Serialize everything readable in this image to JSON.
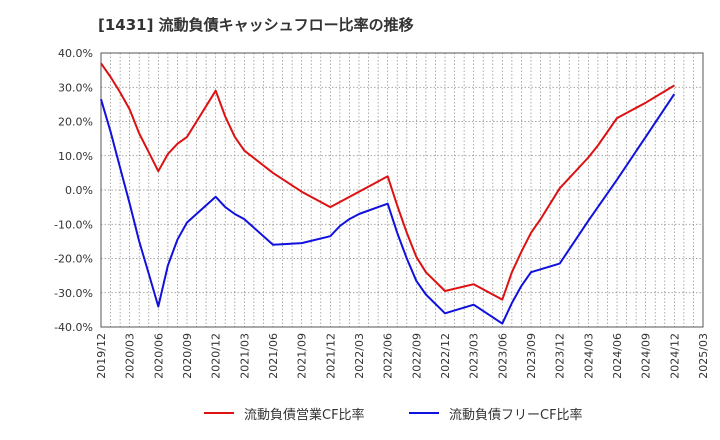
{
  "chart_data": {
    "type": "line",
    "title": "[1431]  流動負債キャッシュフロー比率の推移",
    "y_axis": {
      "min": -40,
      "max": 40,
      "step": 10,
      "suffix": "%",
      "decimals": 1,
      "tick_labels": [
        "40.0%",
        "30.0%",
        "20.0%",
        "10.0%",
        "0.0%",
        "-10.0%",
        "-20.0%",
        "-30.0%",
        "-40.0%"
      ]
    },
    "x_tick_labels": [
      "2019/12",
      "2020/03",
      "2020/06",
      "2020/09",
      "2020/12",
      "2021/03",
      "2021/06",
      "2021/09",
      "2021/12",
      "2022/03",
      "2022/06",
      "2022/09",
      "2022/12",
      "2023/03",
      "2023/06",
      "2023/09",
      "2023/12",
      "2024/03",
      "2024/06",
      "2024/09",
      "2024/12",
      "2025/03"
    ],
    "grid": true,
    "legend_position": "bottom",
    "series": [
      {
        "name": "流動負債営業CF比率",
        "color": "#dd1111",
        "points": [
          [
            "2019/12",
            37.0
          ],
          [
            "2020/01",
            33.0
          ],
          [
            "2020/02",
            28.5
          ],
          [
            "2020/03",
            23.5
          ],
          [
            "2020/04",
            16.5
          ],
          [
            "2020/05",
            11.0
          ],
          [
            "2020/06",
            5.5
          ],
          [
            "2020/07",
            10.5
          ],
          [
            "2020/08",
            13.5
          ],
          [
            "2020/09",
            15.5
          ],
          [
            "2020/12",
            29.0
          ],
          [
            "2021/01",
            21.5
          ],
          [
            "2021/02",
            15.5
          ],
          [
            "2021/03",
            11.5
          ],
          [
            "2021/06",
            5.0
          ],
          [
            "2021/09",
            -0.5
          ],
          [
            "2021/12",
            -5.0
          ],
          [
            "2022/03",
            -0.5
          ],
          [
            "2022/06",
            4.0
          ],
          [
            "2022/07",
            -4.5
          ],
          [
            "2022/08",
            -12.5
          ],
          [
            "2022/09",
            -19.5
          ],
          [
            "2022/10",
            -24.0
          ],
          [
            "2022/12",
            -29.5
          ],
          [
            "2023/03",
            -27.5
          ],
          [
            "2023/06",
            -32.0
          ],
          [
            "2023/07",
            -24.0
          ],
          [
            "2023/08",
            -18.0
          ],
          [
            "2023/09",
            -12.5
          ],
          [
            "2023/10",
            -8.5
          ],
          [
            "2023/12",
            0.5
          ],
          [
            "2024/03",
            9.5
          ],
          [
            "2024/04",
            13.0
          ],
          [
            "2024/06",
            21.0
          ],
          [
            "2024/09",
            25.5
          ],
          [
            "2024/12",
            30.5
          ]
        ]
      },
      {
        "name": "流動負債フリーCF比率",
        "color": "#1111dd",
        "points": [
          [
            "2019/12",
            26.5
          ],
          [
            "2020/01",
            17.0
          ],
          [
            "2020/02",
            6.5
          ],
          [
            "2020/03",
            -4.0
          ],
          [
            "2020/04",
            -15.0
          ],
          [
            "2020/05",
            -24.5
          ],
          [
            "2020/06",
            -34.0
          ],
          [
            "2020/07",
            -22.0
          ],
          [
            "2020/08",
            -14.5
          ],
          [
            "2020/09",
            -9.5
          ],
          [
            "2020/12",
            -2.0
          ],
          [
            "2021/01",
            -5.0
          ],
          [
            "2021/02",
            -7.0
          ],
          [
            "2021/03",
            -8.5
          ],
          [
            "2021/06",
            -16.0
          ],
          [
            "2021/09",
            -15.5
          ],
          [
            "2021/12",
            -13.5
          ],
          [
            "2022/01",
            -10.5
          ],
          [
            "2022/02",
            -8.5
          ],
          [
            "2022/03",
            -7.0
          ],
          [
            "2022/06",
            -4.0
          ],
          [
            "2022/07",
            -12.5
          ],
          [
            "2022/08",
            -20.0
          ],
          [
            "2022/09",
            -26.5
          ],
          [
            "2022/10",
            -30.5
          ],
          [
            "2022/12",
            -36.0
          ],
          [
            "2023/03",
            -33.5
          ],
          [
            "2023/06",
            -39.0
          ],
          [
            "2023/07",
            -33.0
          ],
          [
            "2023/08",
            -28.0
          ],
          [
            "2023/09",
            -24.0
          ],
          [
            "2023/12",
            -21.5
          ],
          [
            "2024/03",
            -9.0
          ],
          [
            "2024/04",
            -5.0
          ],
          [
            "2024/06",
            3.0
          ],
          [
            "2024/09",
            15.5
          ],
          [
            "2024/12",
            28.0
          ]
        ]
      }
    ]
  }
}
